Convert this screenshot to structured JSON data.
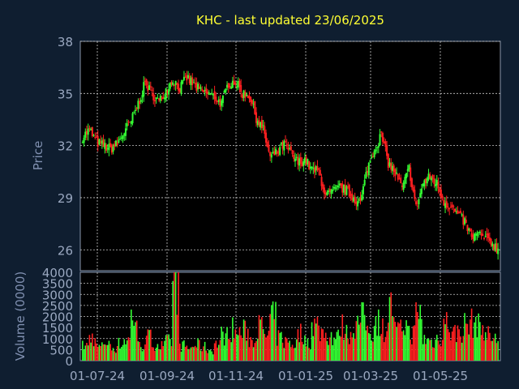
{
  "chart_data": [
    {
      "type": "candlestick",
      "title": "KHC - last updated 23/06/2025",
      "ylabel": "Price",
      "y_ticks": [
        26,
        29,
        32,
        35,
        38
      ],
      "ylim": [
        24.8,
        38
      ],
      "x_tick_labels": [
        "01-07-24",
        "01-09-24",
        "01-11-24",
        "01-01-25",
        "01-03-25",
        "01-05-25"
      ],
      "grid": true,
      "colors": {
        "up": "#33ff33",
        "down": "#ff2020",
        "background": "#000000",
        "page": "#0f1e30",
        "title": "#ffff33"
      },
      "closes_weekly": [
        32.5,
        32.9,
        32.2,
        32.0,
        31.8,
        32.1,
        32.8,
        33.4,
        34.4,
        35.6,
        35.0,
        34.5,
        35.2,
        35.8,
        35.3,
        35.9,
        35.5,
        35.1,
        35.0,
        34.8,
        34.4,
        35.6,
        35.7,
        35.0,
        34.9,
        33.6,
        32.9,
        31.3,
        31.6,
        32.1,
        31.5,
        31.0,
        31.2,
        30.6,
        30.5,
        29.1,
        29.3,
        29.6,
        29.4,
        29.0,
        28.7,
        30.7,
        31.8,
        32.6,
        31.0,
        30.4,
        29.5,
        30.7,
        28.4,
        29.8,
        30.2,
        29.8,
        28.8,
        28.5,
        28.0,
        27.6,
        26.7,
        26.9,
        26.6,
        26.4,
        25.9
      ]
    },
    {
      "type": "bar",
      "ylabel": "Volume (0000)",
      "y_ticks": [
        0,
        500,
        1000,
        1500,
        2000,
        2500,
        3000,
        3500,
        4000
      ],
      "ylim": [
        0,
        4000
      ],
      "x_tick_labels": [
        "01-07-24",
        "01-09-24",
        "01-11-24",
        "01-01-25",
        "01-03-25",
        "01-05-25"
      ],
      "grid": true,
      "volumes_weekly": [
        700,
        1100,
        650,
        900,
        600,
        800,
        1000,
        2100,
        700,
        1100,
        800,
        700,
        900,
        3600,
        700,
        600,
        750,
        650,
        500,
        800,
        1200,
        1500,
        1300,
        1400,
        1000,
        1600,
        1200,
        2000,
        1100,
        900,
        800,
        1300,
        900,
        1700,
        1400,
        1200,
        1100,
        1600,
        1300,
        1700,
        2000,
        1400,
        1900,
        1500,
        2500,
        1400,
        1700,
        1300,
        2200,
        1000,
        900,
        1100,
        1800,
        1300,
        1400,
        1700,
        1800,
        1600,
        1200,
        1000,
        2500
      ]
    }
  ]
}
